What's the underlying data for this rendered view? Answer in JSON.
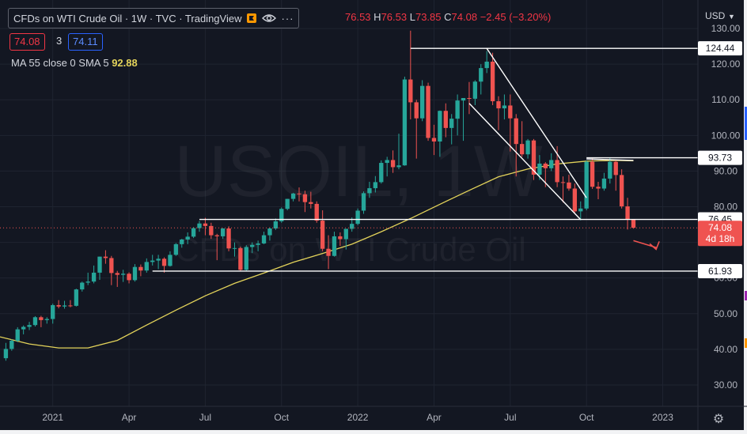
{
  "window": {
    "title": "CFDs on WTI Crude Oil · 1W · TVC · TradingView",
    "currency": "USD"
  },
  "ohlc": {
    "open_value": "76.53",
    "high_label": "H",
    "high_value": "76.53",
    "low_label": "L",
    "low_value": "73.85",
    "close_label": "C",
    "close_value": "74.08",
    "change": "−2.45 (−3.20%)"
  },
  "quote": {
    "bid": "74.08",
    "spread": "3",
    "ask": "74.11"
  },
  "indicator": {
    "label": "MA 55 close 0 SMA 5",
    "value": "92.88"
  },
  "watermark": {
    "symbol": "USOIL, 1W",
    "name": "CFDs on WTI Crude Oil"
  },
  "colors": {
    "background": "#131722",
    "up": "#26a69a",
    "down": "#ef5350",
    "ma": "#e3d35a",
    "axis_text": "#b2b5be",
    "lines": "#ffffff"
  },
  "chart_data": {
    "type": "candlestick",
    "symbol": "USOIL",
    "interval": "1W",
    "y_axis": {
      "ticks": [
        30,
        40,
        50,
        60,
        70,
        80,
        90,
        100,
        110,
        120,
        130
      ],
      "tick_labels": [
        "30.00",
        "40.00",
        "50.00",
        "60.00",
        "70.00",
        "80.00",
        "90.00",
        "100.00",
        "110.00",
        "120.00",
        "130.00"
      ],
      "range": [
        24,
        138
      ],
      "side": "right"
    },
    "x_axis": {
      "range": [
        "2020-11-02",
        "2023-02-13"
      ],
      "ticks": [
        {
          "date": "2021-01-04",
          "label": "2021"
        },
        {
          "date": "2021-04-05",
          "label": "Apr"
        },
        {
          "date": "2021-07-05",
          "label": "Jul"
        },
        {
          "date": "2021-10-04",
          "label": "Oct"
        },
        {
          "date": "2022-01-03",
          "label": "2022"
        },
        {
          "date": "2022-04-04",
          "label": "Apr"
        },
        {
          "date": "2022-07-04",
          "label": "Jul"
        },
        {
          "date": "2022-10-03",
          "label": "Oct"
        },
        {
          "date": "2023-01-02",
          "label": "2023"
        }
      ]
    },
    "candles": [
      {
        "date": "2020-11-09",
        "o": 37.5,
        "h": 41.8,
        "l": 36.8,
        "c": 40.1
      },
      {
        "date": "2020-11-16",
        "o": 40.1,
        "h": 42.8,
        "l": 39.6,
        "c": 42.4
      },
      {
        "date": "2020-11-23",
        "o": 42.4,
        "h": 46.2,
        "l": 42.0,
        "c": 45.6
      },
      {
        "date": "2020-11-30",
        "o": 45.6,
        "h": 46.7,
        "l": 44.2,
        "c": 46.3
      },
      {
        "date": "2020-12-07",
        "o": 46.3,
        "h": 47.7,
        "l": 45.4,
        "c": 46.8
      },
      {
        "date": "2020-12-14",
        "o": 46.8,
        "h": 49.3,
        "l": 46.4,
        "c": 49.0
      },
      {
        "date": "2020-12-21",
        "o": 49.0,
        "h": 49.4,
        "l": 46.2,
        "c": 48.2
      },
      {
        "date": "2020-12-28",
        "o": 48.2,
        "h": 49.0,
        "l": 47.2,
        "c": 48.5
      },
      {
        "date": "2021-01-04",
        "o": 48.5,
        "h": 52.8,
        "l": 47.2,
        "c": 52.4
      },
      {
        "date": "2021-01-11",
        "o": 52.4,
        "h": 53.8,
        "l": 51.5,
        "c": 52.0
      },
      {
        "date": "2021-01-18",
        "o": 52.0,
        "h": 53.6,
        "l": 51.4,
        "c": 52.3
      },
      {
        "date": "2021-01-25",
        "o": 52.3,
        "h": 53.8,
        "l": 51.8,
        "c": 52.2
      },
      {
        "date": "2021-02-01",
        "o": 52.2,
        "h": 57.0,
        "l": 52.0,
        "c": 56.8
      },
      {
        "date": "2021-02-08",
        "o": 56.8,
        "h": 59.0,
        "l": 56.2,
        "c": 58.7
      },
      {
        "date": "2021-02-15",
        "o": 58.7,
        "h": 61.5,
        "l": 58.0,
        "c": 59.0
      },
      {
        "date": "2021-02-22",
        "o": 59.0,
        "h": 63.5,
        "l": 58.5,
        "c": 61.5
      },
      {
        "date": "2021-03-01",
        "o": 61.5,
        "h": 66.0,
        "l": 59.5,
        "c": 66.0
      },
      {
        "date": "2021-03-08",
        "o": 66.0,
        "h": 67.8,
        "l": 64.0,
        "c": 65.6
      },
      {
        "date": "2021-03-15",
        "o": 65.6,
        "h": 66.2,
        "l": 58.0,
        "c": 61.4
      },
      {
        "date": "2021-03-22",
        "o": 61.4,
        "h": 62.0,
        "l": 57.5,
        "c": 60.9
      },
      {
        "date": "2021-03-29",
        "o": 60.9,
        "h": 62.3,
        "l": 58.9,
        "c": 61.2
      },
      {
        "date": "2021-04-05",
        "o": 61.2,
        "h": 61.6,
        "l": 58.5,
        "c": 59.4
      },
      {
        "date": "2021-04-12",
        "o": 59.4,
        "h": 63.9,
        "l": 59.0,
        "c": 63.1
      },
      {
        "date": "2021-04-19",
        "o": 63.1,
        "h": 63.8,
        "l": 60.5,
        "c": 62.1
      },
      {
        "date": "2021-04-26",
        "o": 62.1,
        "h": 65.5,
        "l": 61.5,
        "c": 64.5
      },
      {
        "date": "2021-05-03",
        "o": 64.5,
        "h": 66.5,
        "l": 63.5,
        "c": 64.9
      },
      {
        "date": "2021-05-10",
        "o": 64.9,
        "h": 66.5,
        "l": 62.5,
        "c": 65.4
      },
      {
        "date": "2021-05-17",
        "o": 65.4,
        "h": 65.8,
        "l": 61.5,
        "c": 63.4
      },
      {
        "date": "2021-05-24",
        "o": 63.4,
        "h": 67.5,
        "l": 63.2,
        "c": 66.5
      },
      {
        "date": "2021-05-31",
        "o": 66.5,
        "h": 69.8,
        "l": 66.2,
        "c": 69.5
      },
      {
        "date": "2021-06-07",
        "o": 69.5,
        "h": 71.0,
        "l": 68.5,
        "c": 70.8
      },
      {
        "date": "2021-06-14",
        "o": 70.8,
        "h": 72.8,
        "l": 69.5,
        "c": 71.6
      },
      {
        "date": "2021-06-21",
        "o": 71.6,
        "h": 74.3,
        "l": 71.2,
        "c": 74.0
      },
      {
        "date": "2021-06-28",
        "o": 74.0,
        "h": 76.0,
        "l": 73.0,
        "c": 75.3
      },
      {
        "date": "2021-07-05",
        "o": 75.3,
        "h": 76.9,
        "l": 72.0,
        "c": 74.6
      },
      {
        "date": "2021-07-12",
        "o": 74.6,
        "h": 75.5,
        "l": 71.0,
        "c": 72.0
      },
      {
        "date": "2021-07-19",
        "o": 72.0,
        "h": 72.4,
        "l": 65.0,
        "c": 71.7
      },
      {
        "date": "2021-07-26",
        "o": 71.7,
        "h": 74.0,
        "l": 71.0,
        "c": 73.9
      },
      {
        "date": "2021-08-02",
        "o": 73.9,
        "h": 74.5,
        "l": 67.5,
        "c": 68.3
      },
      {
        "date": "2021-08-09",
        "o": 68.3,
        "h": 70.0,
        "l": 66.0,
        "c": 68.4
      },
      {
        "date": "2021-08-16",
        "o": 68.4,
        "h": 68.8,
        "l": 61.8,
        "c": 62.3
      },
      {
        "date": "2021-08-23",
        "o": 62.3,
        "h": 69.2,
        "l": 61.9,
        "c": 68.7
      },
      {
        "date": "2021-08-30",
        "o": 68.7,
        "h": 70.0,
        "l": 67.0,
        "c": 69.3
      },
      {
        "date": "2021-09-06",
        "o": 69.3,
        "h": 70.5,
        "l": 67.5,
        "c": 69.7
      },
      {
        "date": "2021-09-13",
        "o": 69.7,
        "h": 73.0,
        "l": 69.5,
        "c": 72.0
      },
      {
        "date": "2021-09-20",
        "o": 72.0,
        "h": 74.2,
        "l": 70.5,
        "c": 73.9
      },
      {
        "date": "2021-09-27",
        "o": 73.9,
        "h": 76.7,
        "l": 73.5,
        "c": 75.9
      },
      {
        "date": "2021-10-04",
        "o": 75.9,
        "h": 79.8,
        "l": 75.5,
        "c": 79.4
      },
      {
        "date": "2021-10-11",
        "o": 79.4,
        "h": 82.2,
        "l": 79.0,
        "c": 82.2
      },
      {
        "date": "2021-10-18",
        "o": 82.2,
        "h": 83.9,
        "l": 81.5,
        "c": 83.7
      },
      {
        "date": "2021-10-25",
        "o": 83.7,
        "h": 85.4,
        "l": 81.5,
        "c": 83.5
      },
      {
        "date": "2021-11-01",
        "o": 83.5,
        "h": 84.5,
        "l": 78.5,
        "c": 81.3
      },
      {
        "date": "2021-11-08",
        "o": 81.3,
        "h": 84.2,
        "l": 79.5,
        "c": 80.8
      },
      {
        "date": "2021-11-15",
        "o": 80.8,
        "h": 81.5,
        "l": 75.5,
        "c": 76.1
      },
      {
        "date": "2021-11-22",
        "o": 76.1,
        "h": 79.0,
        "l": 67.5,
        "c": 68.2
      },
      {
        "date": "2021-11-29",
        "o": 68.2,
        "h": 72.0,
        "l": 62.5,
        "c": 66.2
      },
      {
        "date": "2021-12-06",
        "o": 66.2,
        "h": 73.0,
        "l": 66.0,
        "c": 71.7
      },
      {
        "date": "2021-12-13",
        "o": 71.7,
        "h": 72.8,
        "l": 69.0,
        "c": 70.9
      },
      {
        "date": "2021-12-20",
        "o": 70.9,
        "h": 73.5,
        "l": 68.0,
        "c": 73.8
      },
      {
        "date": "2021-12-27",
        "o": 73.8,
        "h": 77.0,
        "l": 73.0,
        "c": 75.2
      },
      {
        "date": "2022-01-03",
        "o": 75.2,
        "h": 79.5,
        "l": 74.8,
        "c": 78.9
      },
      {
        "date": "2022-01-10",
        "o": 78.9,
        "h": 84.3,
        "l": 78.0,
        "c": 83.8
      },
      {
        "date": "2022-01-17",
        "o": 83.8,
        "h": 87.0,
        "l": 82.5,
        "c": 85.2
      },
      {
        "date": "2022-01-24",
        "o": 85.2,
        "h": 88.6,
        "l": 84.0,
        "c": 86.9
      },
      {
        "date": "2022-01-31",
        "o": 86.9,
        "h": 93.0,
        "l": 86.5,
        "c": 92.3
      },
      {
        "date": "2022-02-07",
        "o": 92.3,
        "h": 94.0,
        "l": 88.5,
        "c": 93.1
      },
      {
        "date": "2022-02-14",
        "o": 93.1,
        "h": 95.8,
        "l": 89.5,
        "c": 91.1
      },
      {
        "date": "2022-02-21",
        "o": 91.1,
        "h": 100.5,
        "l": 90.5,
        "c": 91.6
      },
      {
        "date": "2022-02-28",
        "o": 91.6,
        "h": 116.5,
        "l": 91.5,
        "c": 115.7
      },
      {
        "date": "2022-03-07",
        "o": 115.7,
        "h": 129.4,
        "l": 104.5,
        "c": 109.3
      },
      {
        "date": "2022-03-14",
        "o": 109.3,
        "h": 110.0,
        "l": 93.5,
        "c": 104.8
      },
      {
        "date": "2022-03-21",
        "o": 104.8,
        "h": 115.5,
        "l": 104.0,
        "c": 113.9
      },
      {
        "date": "2022-03-28",
        "o": 113.9,
        "h": 114.8,
        "l": 98.5,
        "c": 99.3
      },
      {
        "date": "2022-04-04",
        "o": 99.3,
        "h": 103.0,
        "l": 94.5,
        "c": 98.3
      },
      {
        "date": "2022-04-11",
        "o": 98.3,
        "h": 107.0,
        "l": 94.0,
        "c": 106.9
      },
      {
        "date": "2022-04-18",
        "o": 106.9,
        "h": 109.0,
        "l": 99.5,
        "c": 102.1
      },
      {
        "date": "2022-04-25",
        "o": 102.1,
        "h": 106.0,
        "l": 97.5,
        "c": 104.7
      },
      {
        "date": "2022-05-02",
        "o": 104.7,
        "h": 111.5,
        "l": 100.0,
        "c": 109.8
      },
      {
        "date": "2022-05-09",
        "o": 109.8,
        "h": 110.5,
        "l": 98.5,
        "c": 110.5
      },
      {
        "date": "2022-05-16",
        "o": 110.5,
        "h": 115.0,
        "l": 106.0,
        "c": 110.3
      },
      {
        "date": "2022-05-23",
        "o": 110.3,
        "h": 115.5,
        "l": 108.5,
        "c": 115.1
      },
      {
        "date": "2022-05-30",
        "o": 115.1,
        "h": 120.0,
        "l": 111.5,
        "c": 118.9
      },
      {
        "date": "2022-06-06",
        "o": 118.9,
        "h": 123.7,
        "l": 117.5,
        "c": 120.7
      },
      {
        "date": "2022-06-13",
        "o": 120.7,
        "h": 123.2,
        "l": 108.5,
        "c": 109.6
      },
      {
        "date": "2022-06-20",
        "o": 109.6,
        "h": 111.0,
        "l": 101.5,
        "c": 107.6
      },
      {
        "date": "2022-06-27",
        "o": 107.6,
        "h": 111.5,
        "l": 104.5,
        "c": 108.4
      },
      {
        "date": "2022-07-04",
        "o": 108.4,
        "h": 111.5,
        "l": 95.5,
        "c": 104.8
      },
      {
        "date": "2022-07-11",
        "o": 104.8,
        "h": 106.0,
        "l": 88.5,
        "c": 97.6
      },
      {
        "date": "2022-07-18",
        "o": 97.6,
        "h": 104.0,
        "l": 94.0,
        "c": 94.7
      },
      {
        "date": "2022-07-25",
        "o": 94.7,
        "h": 99.0,
        "l": 93.5,
        "c": 98.6
      },
      {
        "date": "2022-08-01",
        "o": 98.6,
        "h": 99.0,
        "l": 87.5,
        "c": 89.0
      },
      {
        "date": "2022-08-08",
        "o": 89.0,
        "h": 94.5,
        "l": 87.5,
        "c": 92.1
      },
      {
        "date": "2022-08-15",
        "o": 92.1,
        "h": 92.5,
        "l": 85.5,
        "c": 90.8
      },
      {
        "date": "2022-08-22",
        "o": 90.8,
        "h": 95.0,
        "l": 90.0,
        "c": 93.1
      },
      {
        "date": "2022-08-29",
        "o": 93.1,
        "h": 97.0,
        "l": 85.5,
        "c": 86.9
      },
      {
        "date": "2022-09-05",
        "o": 86.9,
        "h": 88.5,
        "l": 81.2,
        "c": 86.8
      },
      {
        "date": "2022-09-12",
        "o": 86.8,
        "h": 89.0,
        "l": 84.5,
        "c": 85.1
      },
      {
        "date": "2022-09-19",
        "o": 85.1,
        "h": 86.5,
        "l": 78.2,
        "c": 78.7
      },
      {
        "date": "2022-09-26",
        "o": 78.7,
        "h": 81.5,
        "l": 76.2,
        "c": 79.5
      },
      {
        "date": "2022-10-03",
        "o": 79.5,
        "h": 93.0,
        "l": 79.0,
        "c": 92.6
      },
      {
        "date": "2022-10-10",
        "o": 92.6,
        "h": 93.6,
        "l": 85.0,
        "c": 85.6
      },
      {
        "date": "2022-10-17",
        "o": 85.6,
        "h": 87.0,
        "l": 82.1,
        "c": 85.1
      },
      {
        "date": "2022-10-24",
        "o": 85.1,
        "h": 89.5,
        "l": 84.5,
        "c": 87.9
      },
      {
        "date": "2022-10-31",
        "o": 87.9,
        "h": 93.7,
        "l": 86.5,
        "c": 92.6
      },
      {
        "date": "2022-11-07",
        "o": 92.6,
        "h": 93.0,
        "l": 84.5,
        "c": 88.9
      },
      {
        "date": "2022-11-14",
        "o": 88.9,
        "h": 90.5,
        "l": 79.5,
        "c": 80.1
      },
      {
        "date": "2022-11-21",
        "o": 80.1,
        "h": 82.5,
        "l": 73.6,
        "c": 76.5
      },
      {
        "date": "2022-11-28",
        "o": 76.53,
        "h": 76.53,
        "l": 73.85,
        "c": 74.08
      }
    ],
    "moving_average": {
      "label": "MA 55 close 0 SMA 5",
      "value": 92.88,
      "points": [
        {
          "date": "2020-11-02",
          "v": 43.5
        },
        {
          "date": "2020-12-07",
          "v": 41.5
        },
        {
          "date": "2021-01-11",
          "v": 40.4
        },
        {
          "date": "2021-02-15",
          "v": 40.4
        },
        {
          "date": "2021-03-22",
          "v": 42.5
        },
        {
          "date": "2021-04-26",
          "v": 46.8
        },
        {
          "date": "2021-05-31",
          "v": 51.0
        },
        {
          "date": "2021-07-05",
          "v": 55.0
        },
        {
          "date": "2021-08-09",
          "v": 58.5
        },
        {
          "date": "2021-09-13",
          "v": 61.4
        },
        {
          "date": "2021-10-18",
          "v": 64.4
        },
        {
          "date": "2021-11-22",
          "v": 66.9
        },
        {
          "date": "2021-12-27",
          "v": 69.5
        },
        {
          "date": "2022-01-31",
          "v": 73.0
        },
        {
          "date": "2022-03-07",
          "v": 76.7
        },
        {
          "date": "2022-04-11",
          "v": 80.7
        },
        {
          "date": "2022-05-16",
          "v": 84.6
        },
        {
          "date": "2022-06-20",
          "v": 88.4
        },
        {
          "date": "2022-07-25",
          "v": 90.6
        },
        {
          "date": "2022-08-29",
          "v": 92.0
        },
        {
          "date": "2022-10-03",
          "v": 92.8
        },
        {
          "date": "2022-11-07",
          "v": 93.0
        },
        {
          "date": "2022-11-28",
          "v": 92.9
        }
      ]
    },
    "horizontal_lines": [
      {
        "label": "124.44",
        "value": 124.44,
        "from": "2022-03-07",
        "to": "2023-02-13"
      },
      {
        "label": "93.73",
        "value": 93.73,
        "from": "2022-10-03",
        "to": "2023-02-13"
      },
      {
        "label": "76.45",
        "value": 76.45,
        "from": "2021-06-28",
        "to": "2023-02-13"
      },
      {
        "label": "61.93",
        "value": 61.93,
        "from": "2021-05-03",
        "to": "2023-02-13"
      }
    ],
    "trend_lines": [
      {
        "from": {
          "date": "2022-06-06",
          "v": 124.4
        },
        "to": {
          "date": "2022-10-03",
          "v": 82.5
        }
      },
      {
        "from": {
          "date": "2022-05-16",
          "v": 109.0
        },
        "to": {
          "date": "2022-09-26",
          "v": 76.4
        }
      },
      {
        "from": {
          "date": "2022-10-03",
          "v": 93.4
        },
        "to": {
          "date": "2022-11-28",
          "v": 93.0
        }
      }
    ],
    "arrow": {
      "from": {
        "date": "2022-11-28",
        "v": 70.5
      },
      "to": {
        "date": "2022-12-26",
        "v": 68.5
      }
    },
    "last_price": {
      "value": 74.08,
      "label": "74.08",
      "countdown": "4d 18h"
    },
    "price_tags": [
      "124.44",
      "93.73",
      "76.45",
      "61.93"
    ]
  }
}
